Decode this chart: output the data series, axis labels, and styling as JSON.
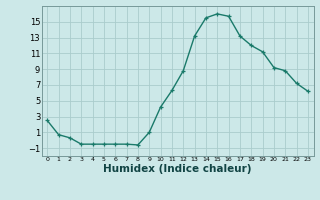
{
  "x": [
    0,
    1,
    2,
    3,
    4,
    5,
    6,
    7,
    8,
    9,
    10,
    11,
    12,
    13,
    14,
    15,
    16,
    17,
    18,
    19,
    20,
    21,
    22,
    23
  ],
  "y": [
    2.5,
    0.7,
    0.3,
    -0.5,
    -0.5,
    -0.5,
    -0.5,
    -0.5,
    -0.6,
    1.0,
    4.2,
    6.3,
    8.8,
    13.2,
    15.5,
    16.0,
    15.7,
    13.2,
    12.0,
    11.2,
    9.2,
    8.8,
    7.2,
    6.2
  ],
  "line_color": "#1a7a6a",
  "marker": "+",
  "marker_size": 3,
  "bg_color": "#cce8e8",
  "grid_color": "#aacccc",
  "xlabel": "Humidex (Indice chaleur)",
  "xlabel_fontsize": 7.5,
  "xlabel_fontweight": "bold",
  "ylabel_ticks": [
    -1,
    1,
    3,
    5,
    7,
    9,
    11,
    13,
    15
  ],
  "xlim": [
    -0.5,
    23.5
  ],
  "ylim": [
    -2.0,
    17.0
  ],
  "xtick_labels": [
    "0",
    "1",
    "2",
    "3",
    "4",
    "5",
    "6",
    "7",
    "8",
    "9",
    "10",
    "11",
    "12",
    "13",
    "14",
    "15",
    "16",
    "17",
    "18",
    "19",
    "20",
    "21",
    "22",
    "23"
  ]
}
